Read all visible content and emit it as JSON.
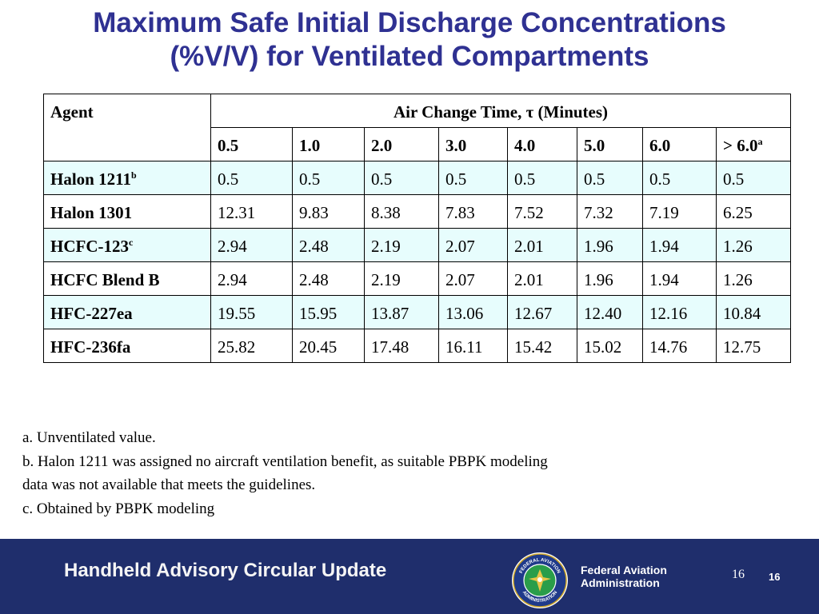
{
  "title": {
    "line1": "Maximum Safe Initial Discharge Concentrations",
    "line2": "(%V/V) for Ventilated Compartments"
  },
  "table": {
    "agent_header": "Agent",
    "group_header": "Air Change Time, τ  (Minutes)",
    "columns": [
      "0.5",
      "1.0",
      "2.0",
      "3.0",
      "4.0",
      "5.0",
      "6.0",
      "> 6.0"
    ],
    "last_column_sup": "a",
    "rows": [
      {
        "agent": "Halon 1211",
        "sup": "b",
        "values": [
          "0.5",
          "0.5",
          "0.5",
          "0.5",
          "0.5",
          "0.5",
          "0.5",
          "0.5"
        ]
      },
      {
        "agent": "Halon 1301",
        "sup": "",
        "values": [
          "12.31",
          "9.83",
          "8.38",
          "7.83",
          "7.52",
          "7.32",
          "7.19",
          "6.25"
        ]
      },
      {
        "agent": "HCFC-123",
        "sup": "c",
        "values": [
          "2.94",
          "2.48",
          "2.19",
          "2.07",
          "2.01",
          "1.96",
          "1.94",
          "1.26"
        ]
      },
      {
        "agent": "HCFC Blend B",
        "sup": "",
        "values": [
          "2.94",
          "2.48",
          "2.19",
          "2.07",
          "2.01",
          "1.96",
          "1.94",
          "1.26"
        ]
      },
      {
        "agent": "HFC-227ea",
        "sup": "",
        "values": [
          "19.55",
          "15.95",
          "13.87",
          "13.06",
          "12.67",
          "12.40",
          "12.16",
          "10.84"
        ]
      },
      {
        "agent": "HFC-236fa",
        "sup": "",
        "values": [
          "25.82",
          "20.45",
          "17.48",
          "16.11",
          "15.42",
          "15.02",
          "14.76",
          "12.75"
        ]
      }
    ]
  },
  "notes": [
    "a. Unventilated value.",
    "b. Halon 1211 was assigned no aircraft ventilation benefit, as suitable PBPK modeling",
    "data was not available that meets the guidelines.",
    "c. Obtained by PBPK modeling"
  ],
  "footer": {
    "title": "Handheld Advisory Circular Update",
    "seal_icon": "faa-seal-icon",
    "seal_text_top": "FEDERAL AVIATION",
    "seal_text_bottom": "ADMINISTRATION",
    "agency_line1": "Federal Aviation",
    "agency_line2": "Administration",
    "page_number": "16",
    "page_number_bold": "16"
  },
  "colors": {
    "title": "#2f3192",
    "highlight_row": "#e7fdfd",
    "footer_bg": "#1f2e6c"
  }
}
